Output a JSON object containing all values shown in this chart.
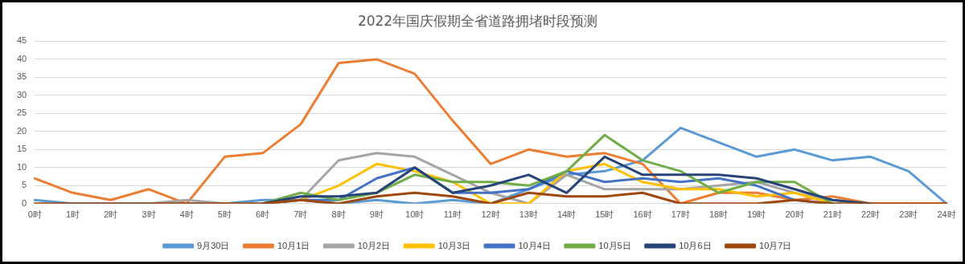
{
  "chart_data": {
    "type": "line",
    "title": "2022年国庆假期全省道路拥堵时段预测",
    "categories": [
      "0时",
      "1时",
      "2时",
      "3时",
      "4时",
      "5时",
      "6时",
      "7时",
      "8时",
      "9时",
      "10时",
      "11时",
      "12时",
      "13时",
      "14时",
      "15时",
      "16时",
      "17时",
      "18时",
      "19时",
      "20时",
      "21时",
      "22时",
      "23时",
      "24时"
    ],
    "ylim": [
      0,
      45
    ],
    "yticks": [
      0,
      5,
      10,
      15,
      20,
      25,
      30,
      35,
      40,
      45
    ],
    "grid": "y",
    "legend": "bottom",
    "marker": "none",
    "line_style": "solid",
    "series": [
      {
        "name": "9月30日",
        "color": "#5b9bd5",
        "values": [
          1,
          0,
          0,
          0,
          0,
          0,
          1,
          1,
          0,
          1,
          0,
          1,
          0,
          4,
          8,
          9,
          12,
          21,
          17,
          13,
          15,
          12,
          13,
          9,
          0
        ]
      },
      {
        "name": "10月1日",
        "color": "#ed7d31",
        "values": [
          7,
          3,
          1,
          4,
          0,
          13,
          14,
          22,
          39,
          40,
          36,
          23,
          11,
          15,
          13,
          14,
          11,
          0,
          3,
          3,
          1,
          2,
          0,
          0,
          0
        ]
      },
      {
        "name": "10月2日",
        "color": "#a5a5a5",
        "values": [
          null,
          null,
          null,
          0,
          1,
          0,
          0,
          1,
          12,
          14,
          13,
          8,
          3,
          0,
          8,
          4,
          4,
          4,
          5,
          6,
          3,
          1,
          0,
          null,
          null
        ]
      },
      {
        "name": "10月3日",
        "color": "#ffc000",
        "values": [
          null,
          null,
          null,
          null,
          null,
          null,
          0,
          1,
          5,
          11,
          9,
          6,
          0,
          0,
          9,
          11,
          6,
          4,
          4,
          2,
          3,
          0,
          null,
          null,
          null
        ]
      },
      {
        "name": "10月4日",
        "color": "#4472c4",
        "values": [
          null,
          null,
          null,
          null,
          null,
          null,
          0,
          1,
          1,
          7,
          10,
          3,
          3,
          4,
          9,
          6,
          7,
          6,
          7,
          5,
          1,
          0,
          null,
          null,
          null
        ]
      },
      {
        "name": "10月5日",
        "color": "#70ad47",
        "values": [
          null,
          null,
          null,
          null,
          null,
          null,
          0,
          3,
          1,
          3,
          8,
          6,
          6,
          5,
          9,
          19,
          12,
          9,
          3,
          6,
          6,
          0,
          null,
          null,
          null
        ]
      },
      {
        "name": "10月6日",
        "color": "#264478",
        "values": [
          null,
          null,
          null,
          null,
          null,
          null,
          0,
          2,
          2,
          3,
          10,
          3,
          5,
          8,
          3,
          13,
          8,
          8,
          8,
          7,
          4,
          1,
          0,
          null,
          null
        ]
      },
      {
        "name": "10月7日",
        "color": "#9e480e",
        "values": [
          0,
          0,
          0,
          0,
          0,
          0,
          0,
          1,
          0,
          2,
          3,
          2,
          0,
          3,
          2,
          2,
          3,
          0,
          0,
          0,
          1,
          0,
          0,
          0,
          0
        ]
      }
    ]
  }
}
